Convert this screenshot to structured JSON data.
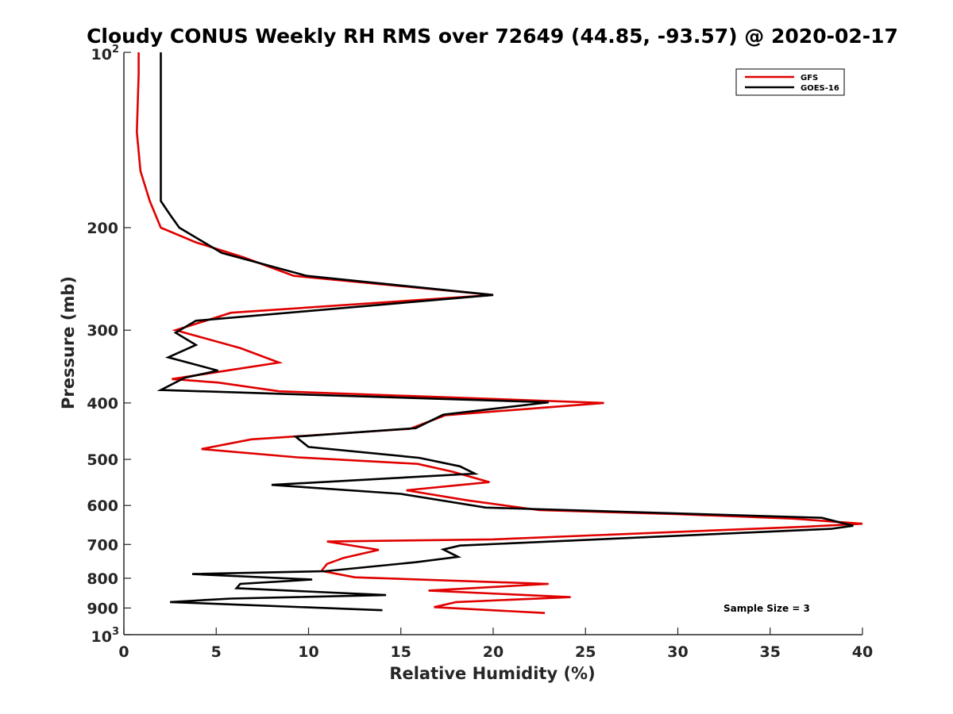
{
  "chart_data": {
    "type": "line",
    "title": "Cloudy CONUS Weekly RH RMS over 72649 (44.85, -93.57) @ 2020-02-17",
    "xlabel": "Relative Humidity (%)",
    "ylabel": "Pressure (mb)",
    "xlim": [
      0,
      40
    ],
    "ylim": [
      100,
      1000
    ],
    "y_scale": "log",
    "y_reversed": true,
    "x_ticks": [
      0,
      5,
      10,
      15,
      20,
      25,
      30,
      35,
      40
    ],
    "x_tick_labels": [
      "0",
      "5",
      "10",
      "15",
      "20",
      "25",
      "30",
      "35",
      "40"
    ],
    "y_ticks": [
      100,
      200,
      300,
      400,
      500,
      600,
      700,
      800,
      900,
      1000
    ],
    "y_tick_labels": [
      {
        "base": "10",
        "exp": "2"
      },
      {
        "base": "200",
        "exp": ""
      },
      {
        "base": "300",
        "exp": ""
      },
      {
        "base": "400",
        "exp": ""
      },
      {
        "base": "500",
        "exp": ""
      },
      {
        "base": "600",
        "exp": ""
      },
      {
        "base": "700",
        "exp": ""
      },
      {
        "base": "800",
        "exp": ""
      },
      {
        "base": "900",
        "exp": ""
      },
      {
        "base": "10",
        "exp": "3"
      }
    ],
    "grid": false,
    "legend_position": "top-right",
    "annotation": "Sample Size = 3",
    "series": [
      {
        "name": "GFS",
        "color": "#e00000",
        "points": [
          [
            0.8,
            100
          ],
          [
            0.8,
            109
          ],
          [
            0.7,
            137
          ],
          [
            0.9,
            160
          ],
          [
            1.4,
            180
          ],
          [
            2.0,
            200
          ],
          [
            3.9,
            212
          ],
          [
            6.5,
            225
          ],
          [
            9.2,
            242
          ],
          [
            20.0,
            261
          ],
          [
            5.8,
            280
          ],
          [
            2.8,
            300
          ],
          [
            6.3,
            322
          ],
          [
            8.4,
            341
          ],
          [
            2.6,
            364
          ],
          [
            5.1,
            369
          ],
          [
            8.4,
            382
          ],
          [
            26.0,
            400
          ],
          [
            17.4,
            420
          ],
          [
            15.5,
            443
          ],
          [
            6.9,
            462
          ],
          [
            4.2,
            480
          ],
          [
            9.4,
            496
          ],
          [
            15.9,
            509
          ],
          [
            17.8,
            525
          ],
          [
            19.8,
            547
          ],
          [
            15.3,
            565
          ],
          [
            18.6,
            588
          ],
          [
            22.5,
            611
          ],
          [
            30.0,
            621
          ],
          [
            36.2,
            632
          ],
          [
            40.0,
            645
          ],
          [
            37.1,
            652
          ],
          [
            20.0,
            686
          ],
          [
            11.0,
            692
          ],
          [
            13.8,
            715
          ],
          [
            11.9,
            738
          ],
          [
            11.0,
            756
          ],
          [
            10.7,
            777
          ],
          [
            12.5,
            797
          ],
          [
            23.0,
            818
          ],
          [
            16.5,
            840
          ],
          [
            24.2,
            862
          ],
          [
            18.0,
            879
          ],
          [
            16.8,
            897
          ],
          [
            22.8,
            918
          ]
        ]
      },
      {
        "name": "GOES-16",
        "color": "#000000",
        "points": [
          [
            2.0,
            100
          ],
          [
            2.0,
            109
          ],
          [
            2.0,
            137
          ],
          [
            2.0,
            180
          ],
          [
            2.5,
            190
          ],
          [
            3.0,
            200
          ],
          [
            5.3,
            221
          ],
          [
            9.9,
            242
          ],
          [
            20.0,
            261
          ],
          [
            3.9,
            289
          ],
          [
            2.8,
            303
          ],
          [
            3.9,
            318
          ],
          [
            2.4,
            334
          ],
          [
            5.1,
            352
          ],
          [
            3.3,
            362
          ],
          [
            2.0,
            380
          ],
          [
            23.0,
            399
          ],
          [
            17.3,
            419
          ],
          [
            15.8,
            442
          ],
          [
            9.3,
            457
          ],
          [
            10.0,
            476
          ],
          [
            16.0,
            497
          ],
          [
            18.2,
            514
          ],
          [
            19.0,
            529
          ],
          [
            8.0,
            553
          ],
          [
            15.0,
            573
          ],
          [
            19.6,
            605
          ],
          [
            37.8,
            630
          ],
          [
            39.5,
            650
          ],
          [
            38.3,
            658
          ],
          [
            18.2,
            703
          ],
          [
            17.3,
            714
          ],
          [
            18.1,
            735
          ],
          [
            15.8,
            751
          ],
          [
            10.9,
            778
          ],
          [
            3.7,
            787
          ],
          [
            10.2,
            804
          ],
          [
            6.3,
            818
          ],
          [
            6.1,
            832
          ],
          [
            14.2,
            855
          ],
          [
            5.8,
            867
          ],
          [
            2.5,
            879
          ],
          [
            14.0,
            908
          ]
        ]
      }
    ]
  }
}
